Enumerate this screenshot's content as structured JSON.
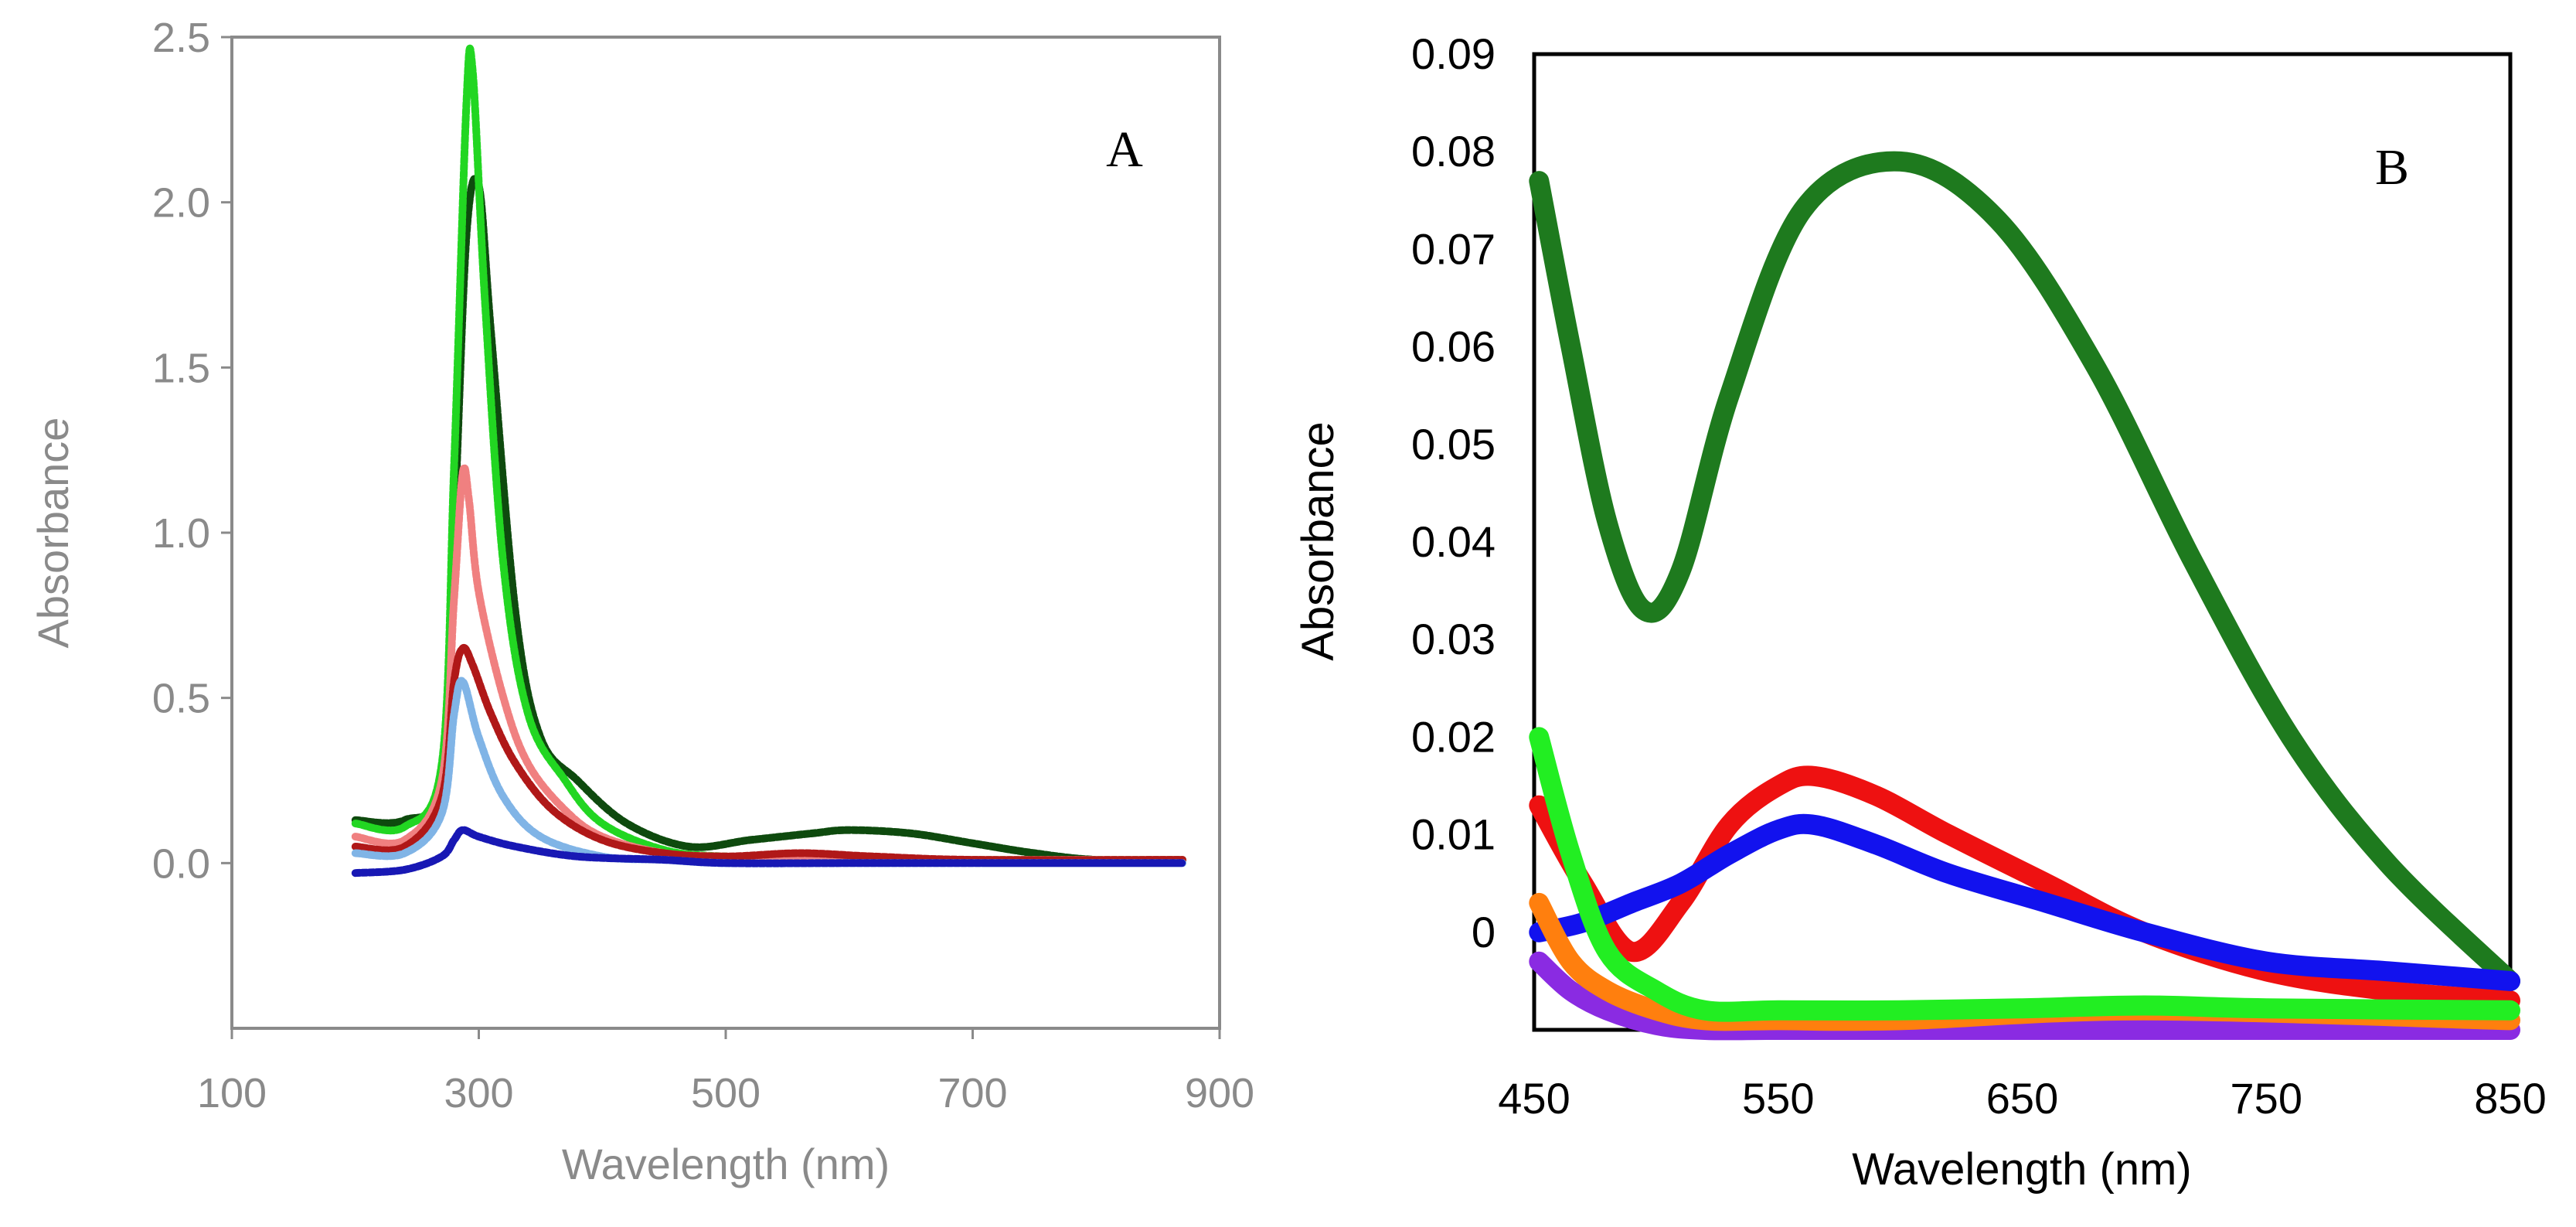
{
  "chart_data": [
    {
      "panel": "A",
      "type": "line",
      "panel_label": "A",
      "xlabel": "Wavelength (nm)",
      "ylabel": "Absorbance",
      "xlim": [
        100,
        900
      ],
      "ylim": [
        -0.5,
        2.5
      ],
      "xticks": [
        100,
        300,
        500,
        700,
        900
      ],
      "xtick_labels": [
        "100",
        "300",
        "500",
        "700",
        "900"
      ],
      "yticks": [
        0.0,
        0.5,
        1.0,
        1.5,
        2.0,
        2.5
      ],
      "ytick_labels": [
        "0.0",
        "0.5",
        "1.0",
        "1.5",
        "2.0",
        "2.5"
      ],
      "grid": false,
      "series": [
        {
          "name": "dark green",
          "color": "#0e4a0e",
          "x": [
            200,
            240,
            270,
            280,
            290,
            300,
            310,
            330,
            350,
            380,
            420,
            470,
            520,
            570,
            600,
            650,
            700,
            750,
            800,
            870
          ],
          "y": [
            0.13,
            0.13,
            0.25,
            1.0,
            1.9,
            2.05,
            1.6,
            0.75,
            0.38,
            0.25,
            0.12,
            0.05,
            0.07,
            0.09,
            0.1,
            0.09,
            0.06,
            0.03,
            0.01,
            0.01
          ]
        },
        {
          "name": "bright green",
          "color": "#22d622",
          "x": [
            200,
            240,
            270,
            280,
            290,
            295,
            305,
            320,
            340,
            370,
            400,
            450,
            500,
            600,
            700,
            870
          ],
          "y": [
            0.12,
            0.11,
            0.3,
            1.2,
            2.3,
            2.4,
            1.7,
            0.9,
            0.45,
            0.25,
            0.12,
            0.04,
            0.02,
            0.01,
            0.01,
            0.01
          ]
        },
        {
          "name": "salmon",
          "color": "#f08080",
          "x": [
            200,
            240,
            270,
            280,
            287,
            292,
            300,
            320,
            340,
            370,
            400,
            450,
            500,
            600,
            700,
            870
          ],
          "y": [
            0.08,
            0.07,
            0.25,
            0.8,
            1.18,
            1.1,
            0.82,
            0.5,
            0.3,
            0.16,
            0.08,
            0.03,
            0.02,
            0.01,
            0.01,
            0.01
          ]
        },
        {
          "name": "red",
          "color": "#b01818",
          "x": [
            200,
            240,
            270,
            280,
            287,
            295,
            310,
            330,
            360,
            400,
            450,
            500,
            560,
            620,
            700,
            870
          ],
          "y": [
            0.05,
            0.05,
            0.2,
            0.55,
            0.65,
            0.6,
            0.45,
            0.3,
            0.16,
            0.07,
            0.03,
            0.02,
            0.03,
            0.02,
            0.01,
            0.01
          ]
        },
        {
          "name": "light blue",
          "color": "#80b4e6",
          "x": [
            200,
            240,
            270,
            280,
            287,
            300,
            320,
            350,
            400,
            450,
            500,
            600,
            700,
            870
          ],
          "y": [
            0.03,
            0.03,
            0.15,
            0.45,
            0.55,
            0.38,
            0.2,
            0.08,
            0.02,
            0.01,
            0.0,
            0.0,
            0.0,
            0.0
          ]
        },
        {
          "name": "dark blue",
          "color": "#1818b4",
          "x": [
            200,
            240,
            270,
            280,
            287,
            300,
            330,
            380,
            450,
            500,
            600,
            700,
            870
          ],
          "y": [
            -0.03,
            -0.02,
            0.02,
            0.07,
            0.1,
            0.08,
            0.05,
            0.02,
            0.01,
            0.0,
            0.0,
            0.0,
            0.0
          ]
        }
      ]
    },
    {
      "panel": "B",
      "type": "scatter",
      "panel_label": "B",
      "xlabel": "Wavelength (nm)",
      "ylabel": "Absorbance",
      "xlim": [
        450,
        850
      ],
      "ylim": [
        -0.01,
        0.09
      ],
      "xticks": [
        450,
        550,
        650,
        750,
        850
      ],
      "xtick_labels": [
        "450",
        "550",
        "650",
        "750",
        "850"
      ],
      "yticks": [
        0,
        0.01,
        0.02,
        0.03,
        0.04,
        0.05,
        0.06,
        0.07,
        0.08,
        0.09
      ],
      "ytick_labels": [
        "0",
        "0.01",
        "0.02",
        "0.03",
        "0.04",
        "0.05",
        "0.06",
        "0.07",
        "0.08",
        "0.09"
      ],
      "grid": false,
      "series": [
        {
          "name": "dark green",
          "color": "#1e7a1e",
          "x": [
            452,
            465,
            480,
            495,
            510,
            530,
            560,
            600,
            640,
            680,
            720,
            760,
            800,
            850
          ],
          "y": [
            0.077,
            0.06,
            0.042,
            0.033,
            0.037,
            0.055,
            0.074,
            0.079,
            0.073,
            0.058,
            0.038,
            0.02,
            0.007,
            -0.005
          ]
        },
        {
          "name": "red",
          "color": "#ee1111",
          "x": [
            452,
            470,
            490,
            510,
            530,
            550,
            565,
            590,
            620,
            660,
            700,
            750,
            800,
            850
          ],
          "y": [
            0.013,
            0.005,
            -0.002,
            0.003,
            0.011,
            0.015,
            0.016,
            0.014,
            0.01,
            0.005,
            0.0,
            -0.004,
            -0.006,
            -0.007
          ]
        },
        {
          "name": "blue",
          "color": "#1212ee",
          "x": [
            452,
            470,
            490,
            510,
            530,
            550,
            565,
            590,
            620,
            660,
            700,
            750,
            800,
            850
          ],
          "y": [
            0.0,
            0.001,
            0.003,
            0.005,
            0.008,
            0.0105,
            0.011,
            0.009,
            0.006,
            0.003,
            0.0,
            -0.003,
            -0.004,
            -0.005
          ]
        },
        {
          "name": "purple",
          "color": "#8a2be2",
          "x": [
            452,
            465,
            480,
            500,
            520,
            550,
            600,
            700,
            850
          ],
          "y": [
            -0.003,
            -0.006,
            -0.008,
            -0.0095,
            -0.01,
            -0.01,
            -0.01,
            -0.01,
            -0.01
          ]
        },
        {
          "name": "orange",
          "color": "#ff7f0e",
          "x": [
            452,
            465,
            480,
            500,
            520,
            550,
            600,
            700,
            850
          ],
          "y": [
            0.003,
            -0.003,
            -0.006,
            -0.008,
            -0.009,
            -0.009,
            -0.009,
            -0.008,
            -0.009
          ]
        },
        {
          "name": "bright green",
          "color": "#22ee22",
          "x": [
            452,
            465,
            480,
            500,
            520,
            550,
            600,
            650,
            700,
            750,
            850
          ],
          "y": [
            0.02,
            0.008,
            -0.002,
            -0.006,
            -0.008,
            -0.008,
            -0.008,
            -0.0078,
            -0.0075,
            -0.0078,
            -0.008
          ]
        }
      ]
    }
  ]
}
